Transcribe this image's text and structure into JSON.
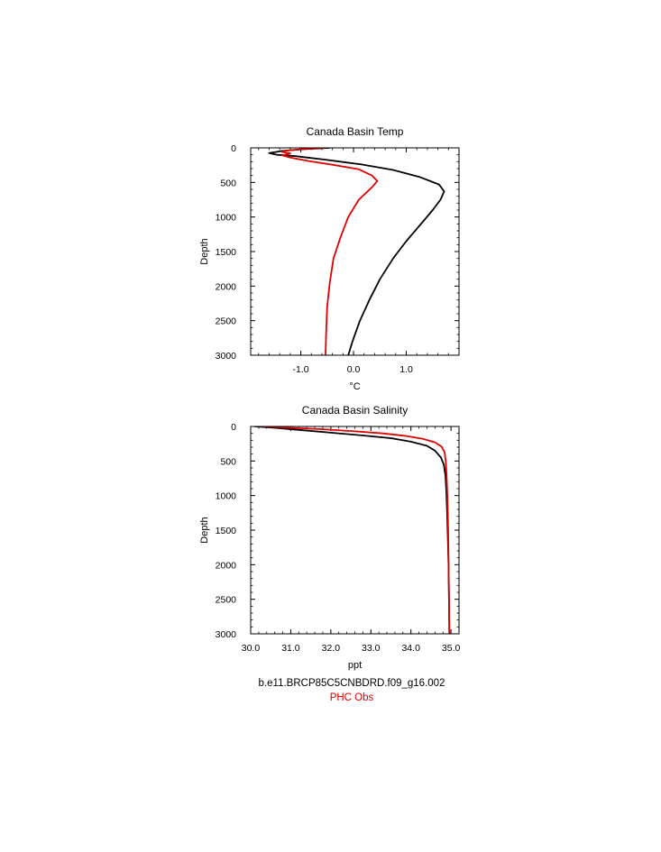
{
  "chart_data": [
    {
      "type": "line",
      "title": "Canada Basin Temp",
      "xlabel": "°C",
      "ylabel": "Depth",
      "xlim": [
        -1.95,
        2.0
      ],
      "ylim": [
        3000,
        0
      ],
      "y_inverted": true,
      "xticks": [
        -1.0,
        0.0,
        1.0
      ],
      "xtick_labels": [
        "-1.0",
        "0.0",
        "1.0"
      ],
      "yticks": [
        0,
        500,
        1000,
        1500,
        2000,
        2500,
        3000
      ],
      "ytick_labels": [
        "0",
        "500",
        "1000",
        "1500",
        "2000",
        "2500",
        "3000"
      ],
      "grid": false,
      "series": [
        {
          "name": "b.e11.BRCP85C5CNBDRD.f09_g16.002",
          "color": "#000000",
          "points": [
            [
              -0.45,
              0
            ],
            [
              -0.95,
              20
            ],
            [
              -1.35,
              45
            ],
            [
              -1.6,
              75
            ],
            [
              -1.45,
              100
            ],
            [
              -1.1,
              120
            ],
            [
              -0.55,
              170
            ],
            [
              0.15,
              240
            ],
            [
              0.75,
              320
            ],
            [
              1.25,
              420
            ],
            [
              1.62,
              530
            ],
            [
              1.72,
              630
            ],
            [
              1.65,
              750
            ],
            [
              1.5,
              900
            ],
            [
              1.28,
              1100
            ],
            [
              1.0,
              1350
            ],
            [
              0.75,
              1600
            ],
            [
              0.5,
              1900
            ],
            [
              0.3,
              2200
            ],
            [
              0.12,
              2500
            ],
            [
              -0.02,
              2800
            ],
            [
              -0.1,
              3000
            ]
          ]
        },
        {
          "name": "PHC Obs",
          "color": "#e00000",
          "points": [
            [
              -0.55,
              0
            ],
            [
              -1.0,
              20
            ],
            [
              -1.3,
              40
            ],
            [
              -1.35,
              60
            ],
            [
              -1.2,
              80
            ],
            [
              -1.35,
              110
            ],
            [
              -1.2,
              140
            ],
            [
              -0.85,
              190
            ],
            [
              -0.35,
              250
            ],
            [
              0.1,
              310
            ],
            [
              0.35,
              400
            ],
            [
              0.45,
              480
            ],
            [
              0.35,
              570
            ],
            [
              0.1,
              750
            ],
            [
              -0.1,
              1000
            ],
            [
              -0.25,
              1300
            ],
            [
              -0.38,
              1600
            ],
            [
              -0.45,
              1950
            ],
            [
              -0.5,
              2300
            ],
            [
              -0.52,
              2700
            ],
            [
              -0.53,
              3000
            ]
          ]
        }
      ]
    },
    {
      "type": "line",
      "title": "Canada Basin Salinity",
      "xlabel": "ppt",
      "ylabel": "Depth",
      "xlim": [
        30.0,
        35.2
      ],
      "ylim": [
        3000,
        0
      ],
      "y_inverted": true,
      "xticks": [
        30.0,
        31.0,
        32.0,
        33.0,
        34.0,
        35.0
      ],
      "xtick_labels": [
        "30.0",
        "31.0",
        "32.0",
        "33.0",
        "34.0",
        "35.0"
      ],
      "yticks": [
        0,
        500,
        1000,
        1500,
        2000,
        2500,
        3000
      ],
      "ytick_labels": [
        "0",
        "500",
        "1000",
        "1500",
        "2000",
        "2500",
        "3000"
      ],
      "grid": false,
      "series": [
        {
          "name": "b.e11.BRCP85C5CNBDRD.f09_g16.002",
          "color": "#000000",
          "points": [
            [
              30.1,
              0
            ],
            [
              30.6,
              20
            ],
            [
              31.2,
              50
            ],
            [
              32.0,
              90
            ],
            [
              32.8,
              130
            ],
            [
              33.5,
              170
            ],
            [
              34.0,
              220
            ],
            [
              34.4,
              280
            ],
            [
              34.6,
              350
            ],
            [
              34.75,
              450
            ],
            [
              34.82,
              550
            ],
            [
              34.86,
              700
            ],
            [
              34.88,
              900
            ],
            [
              34.9,
              1200
            ],
            [
              34.92,
              1600
            ],
            [
              34.94,
              2000
            ],
            [
              34.95,
              2500
            ],
            [
              34.96,
              3000
            ]
          ]
        },
        {
          "name": "PHC Obs",
          "color": "#e00000",
          "points": [
            [
              30.3,
              0
            ],
            [
              31.0,
              20
            ],
            [
              31.8,
              40
            ],
            [
              32.6,
              70
            ],
            [
              33.3,
              100
            ],
            [
              33.9,
              140
            ],
            [
              34.3,
              180
            ],
            [
              34.6,
              230
            ],
            [
              34.76,
              290
            ],
            [
              34.84,
              370
            ],
            [
              34.87,
              500
            ],
            [
              34.89,
              700
            ],
            [
              34.91,
              1000
            ],
            [
              34.93,
              1500
            ],
            [
              34.94,
              2000
            ],
            [
              34.95,
              2500
            ],
            [
              34.96,
              3000
            ]
          ]
        }
      ]
    }
  ],
  "legend": {
    "model_label": "b.e11.BRCP85C5CNBDRD.f09_g16.002",
    "obs_label": "PHC Obs"
  }
}
